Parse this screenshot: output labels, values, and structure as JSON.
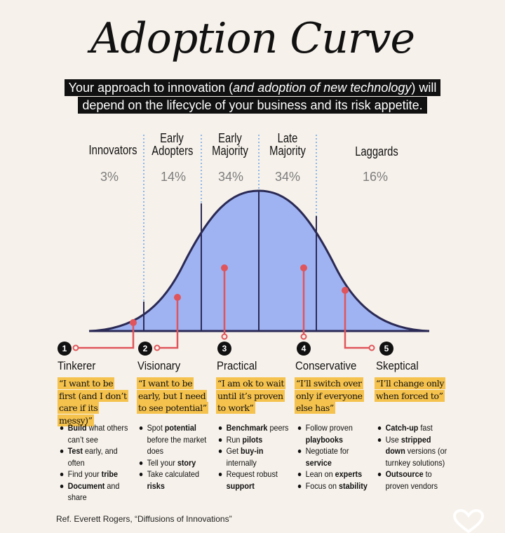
{
  "title": "Adoption Curve",
  "subtitle": {
    "pre": "Your approach to innovation (",
    "italic": "and adoption of new technology",
    "post": ") will depend on the lifecycle of your business and its risk appetite."
  },
  "segments": [
    {
      "label": "Innovators",
      "pct": "3%"
    },
    {
      "label": "Early Adopters",
      "pct": "14%"
    },
    {
      "label": "Early Majority",
      "pct": "34%"
    },
    {
      "label": "Late Majority",
      "pct": "34%"
    },
    {
      "label": "Laggards",
      "pct": "16%"
    }
  ],
  "personas": [
    {
      "num": "1",
      "name": "Tinkerer",
      "quote": "“I want to be first (and I don’t care if its messy)”",
      "tips": [
        {
          "b": "Build",
          "t": " what others can’t see"
        },
        {
          "b": "Test",
          "t": " early, and often"
        },
        {
          "b": "",
          "t": "Find your ",
          "b2": "tribe"
        },
        {
          "b": "Document",
          "t": " and share"
        }
      ]
    },
    {
      "num": "2",
      "name": "Visionary",
      "quote": "“I want to be early, but I need to see potential”",
      "tips": [
        {
          "b": "",
          "t": "Spot ",
          "b2": "potential",
          "t2": " before the market does"
        },
        {
          "b": "",
          "t": "Tell your ",
          "b2": "story"
        },
        {
          "b": "",
          "t": "Take calculated ",
          "b2": "risks"
        }
      ]
    },
    {
      "num": "3",
      "name": "Practical",
      "quote": "“I am ok to wait until it’s proven to work”",
      "tips": [
        {
          "b": "Benchmark",
          "t": " peers"
        },
        {
          "b": "",
          "t": "Run ",
          "b2": "pilots"
        },
        {
          "b": "",
          "t": "Get ",
          "b2": "buy-in",
          "t2": " internally"
        },
        {
          "b": "",
          "t": "Request robust ",
          "b2": "support"
        }
      ]
    },
    {
      "num": "4",
      "name": "Conservative",
      "quote": "“I’ll switch over only if everyone else has”",
      "tips": [
        {
          "b": "",
          "t": "Follow proven ",
          "b2": "playbooks"
        },
        {
          "b": "",
          "t": "Negotiate for ",
          "b2": "service"
        },
        {
          "b": "",
          "t": "Lean on ",
          "b2": "experts"
        },
        {
          "b": "",
          "t": "Focus on ",
          "b2": "stability"
        }
      ]
    },
    {
      "num": "5",
      "name": "Skeptical",
      "quote": "“I’ll change only when forced to”",
      "tips": [
        {
          "b": "Catch-up",
          "t": " fast"
        },
        {
          "b": "",
          "t": "Use ",
          "b2": "stripped down",
          "t2": " versions (or turnkey solutions)"
        },
        {
          "b": "Outsource",
          "t": " to proven vendors"
        }
      ]
    }
  ],
  "reference": "Ref. Everett Rogers, “Diffusions of Innovations”",
  "colors": {
    "curve_fill": "#9fb3f3",
    "curve_stroke": "#2b2a55",
    "connector": "#e0555b",
    "highlight": "#f5c24d",
    "background": "#f6f1ea"
  }
}
